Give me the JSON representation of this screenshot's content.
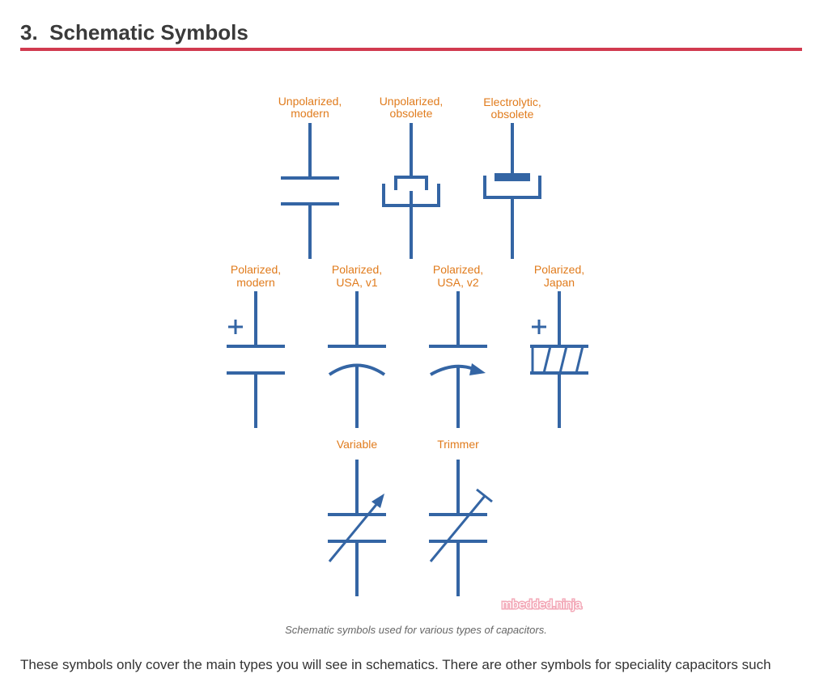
{
  "section": {
    "number": "3.",
    "title": "Schematic Symbols"
  },
  "figure": {
    "symbols": [
      {
        "id": "unpolarized-modern",
        "label_lines": [
          "Unpolarized,",
          "modern"
        ]
      },
      {
        "id": "unpolarized-obsolete",
        "label_lines": [
          "Unpolarized,",
          "obsolete"
        ]
      },
      {
        "id": "electrolytic-obsolete",
        "label_lines": [
          "Electrolytic,",
          "obsolete"
        ]
      },
      {
        "id": "polarized-modern",
        "label_lines": [
          "Polarized,",
          "modern"
        ]
      },
      {
        "id": "polarized-usa-v1",
        "label_lines": [
          "Polarized,",
          "USA, v1"
        ]
      },
      {
        "id": "polarized-usa-v2",
        "label_lines": [
          "Polarized,",
          "USA, v2"
        ]
      },
      {
        "id": "polarized-japan",
        "label_lines": [
          "Polarized,",
          "Japan"
        ]
      },
      {
        "id": "variable",
        "label_lines": [
          "Variable"
        ]
      },
      {
        "id": "trimmer",
        "label_lines": [
          "Trimmer"
        ]
      }
    ],
    "plus_sign": "+",
    "watermark": "mbedded.ninja",
    "caption": "Schematic symbols used for various types of capacitors.",
    "colors": {
      "symbol_stroke": "#3465a4",
      "label": "#e07b1c",
      "heading_rule": "#d13a4f"
    }
  },
  "body": {
    "paragraph": "These symbols only cover the main types you will see in schematics. There are other symbols for speciality capacitors such"
  }
}
